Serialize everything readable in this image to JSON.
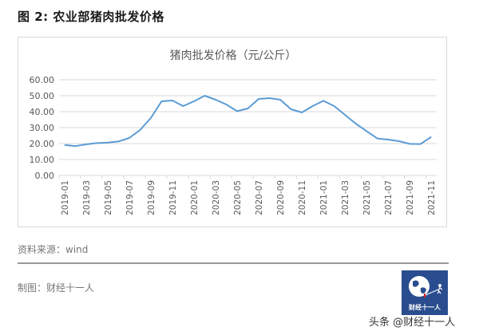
{
  "figure": {
    "title": "图 2:  农业部猪肉批发价格"
  },
  "chart_data": {
    "type": "line",
    "title": "猪肉批发价格（元/公斤）",
    "xlabel": "",
    "ylabel": "",
    "ylim": [
      0,
      60
    ],
    "yticks": [
      "0.00",
      "10.00",
      "20.00",
      "30.00",
      "40.00",
      "50.00",
      "60.00"
    ],
    "grid": true,
    "legend": "none",
    "line_color": "#5b9bd5",
    "x": [
      "2019-01",
      "2019-02",
      "2019-03",
      "2019-04",
      "2019-05",
      "2019-06",
      "2019-07",
      "2019-08",
      "2019-09",
      "2019-10",
      "2019-11",
      "2019-12",
      "2020-01",
      "2020-02",
      "2020-03",
      "2020-04",
      "2020-05",
      "2020-06",
      "2020-07",
      "2020-08",
      "2020-09",
      "2020-10",
      "2020-11",
      "2020-12",
      "2021-01",
      "2021-02",
      "2021-03",
      "2021-04",
      "2021-05",
      "2021-06",
      "2021-07",
      "2021-08",
      "2021-09",
      "2021-10",
      "2021-11"
    ],
    "xtick_labels": [
      "2019-01",
      "2019-03",
      "2019-05",
      "2019-07",
      "2019-09",
      "2019-11",
      "2020-01",
      "2020-03",
      "2020-05",
      "2020-07",
      "2020-09",
      "2020-11",
      "2021-01",
      "2021-03",
      "2021-05",
      "2021-07",
      "2021-09",
      "2021-11"
    ],
    "series": [
      {
        "name": "猪肉批发价格",
        "values": [
          19.2,
          18.4,
          19.5,
          20.3,
          20.6,
          21.3,
          23.5,
          28.5,
          36.0,
          46.5,
          47.0,
          43.5,
          46.5,
          50.0,
          47.5,
          44.5,
          40.3,
          42.0,
          48.0,
          48.5,
          47.5,
          41.5,
          39.5,
          43.5,
          46.8,
          43.5,
          38.0,
          32.5,
          27.8,
          23.2,
          22.5,
          21.5,
          19.8,
          19.7,
          24.2
        ]
      }
    ]
  },
  "footer": {
    "source": "资料来源：wind",
    "maker": "制图：财经十一人",
    "logo_text": "财经十一人",
    "watermark": "头条 @财经十一人"
  }
}
